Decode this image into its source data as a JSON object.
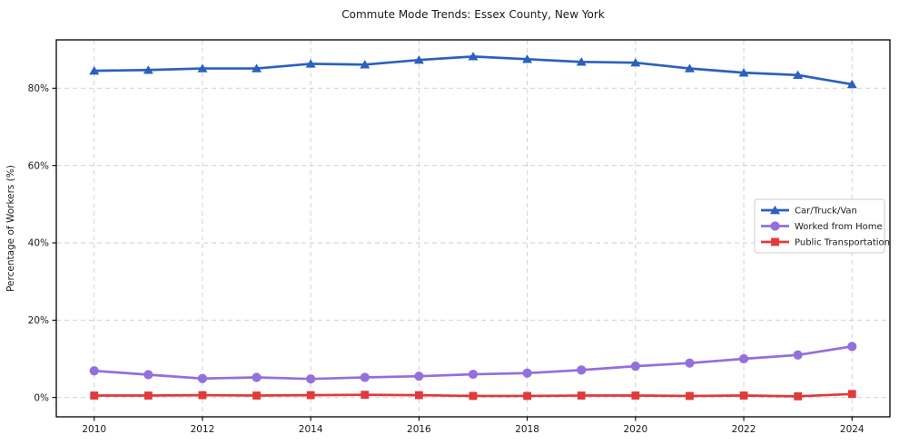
{
  "title": "Commute Mode Trends: Essex County, New York",
  "chart_data": {
    "type": "line",
    "title": "Commute Mode Trends: Essex County, New York",
    "xlabel": "",
    "ylabel": "Percentage of Workers (%)",
    "x": [
      2010,
      2011,
      2012,
      2013,
      2014,
      2015,
      2016,
      2017,
      2018,
      2019,
      2020,
      2021,
      2022,
      2023,
      2024
    ],
    "xticks": [
      2010,
      2012,
      2014,
      2016,
      2018,
      2020,
      2022,
      2024
    ],
    "xtick_labels": [
      "2010",
      "2012",
      "2014",
      "2016",
      "2018",
      "2020",
      "2022",
      "2024"
    ],
    "yticks": [
      0,
      20,
      40,
      60,
      80
    ],
    "ytick_labels": [
      "0%",
      "20%",
      "40%",
      "60%",
      "80%"
    ],
    "ylim": [
      -5,
      92.5
    ],
    "xlim": [
      2009.3,
      2024.7
    ],
    "grid": "dashed-both-axes",
    "legend_position": "center right",
    "series": [
      {
        "name": "Car/Truck/Van",
        "color": "#2b60c0",
        "marker": "triangle",
        "values": [
          84.5,
          84.7,
          85.1,
          85.1,
          86.3,
          86.1,
          87.3,
          88.2,
          87.5,
          86.8,
          86.6,
          85.1,
          84.0,
          83.4,
          81.0
        ]
      },
      {
        "name": "Worked from Home",
        "color": "#9370db",
        "marker": "circle",
        "values": [
          6.9,
          5.9,
          4.9,
          5.2,
          4.8,
          5.2,
          5.5,
          6.0,
          6.3,
          7.1,
          8.1,
          8.9,
          10.0,
          11.0,
          13.2
        ]
      },
      {
        "name": "Public Transportation",
        "color": "#e03a3a",
        "marker": "square",
        "values": [
          0.5,
          0.5,
          0.6,
          0.5,
          0.6,
          0.7,
          0.6,
          0.4,
          0.4,
          0.5,
          0.5,
          0.4,
          0.5,
          0.3,
          0.9
        ]
      }
    ],
    "colors": {
      "axis": "#000000",
      "grid": "#cccccc",
      "text": "#1a1a1a",
      "background": "#ffffff",
      "legend_border": "#cccccc",
      "legend_background": "#ffffff"
    }
  }
}
